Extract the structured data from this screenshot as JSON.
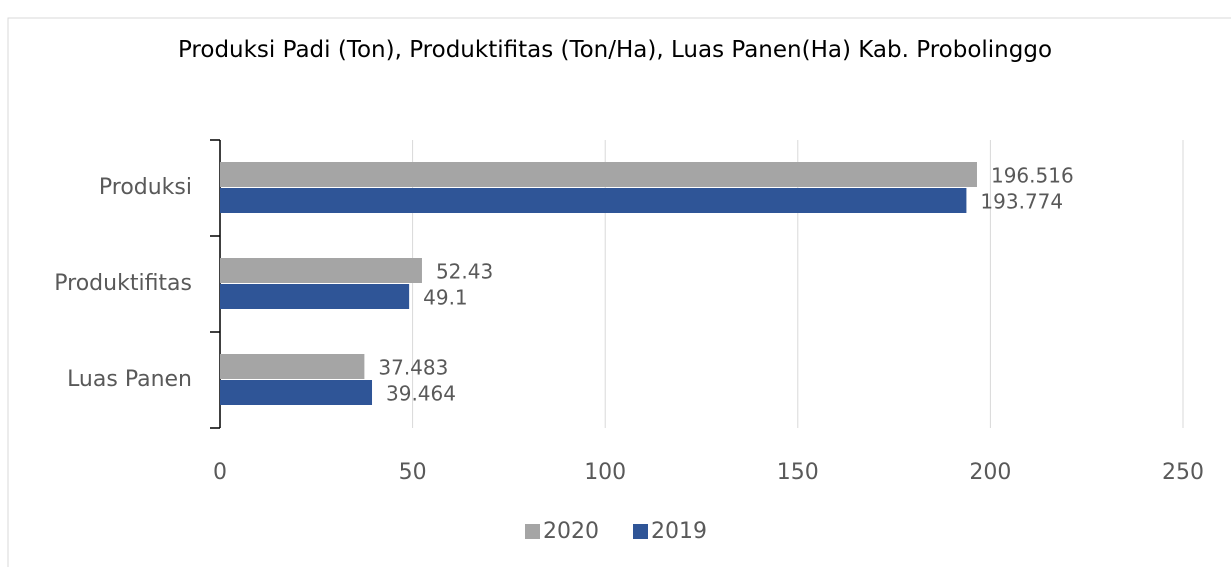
{
  "chart_data": {
    "type": "bar",
    "orientation": "horizontal",
    "title": "Produksi Padi (Ton), Produktifitas (Ton/Ha), Luas Panen(Ha) Kab. Probolinggo",
    "categories": [
      "Produksi",
      "Produktifitas",
      "Luas Panen"
    ],
    "series": [
      {
        "name": "2020",
        "color": "#a5a5a5",
        "values": [
          196.516,
          52.43,
          37.483
        ]
      },
      {
        "name": "2019",
        "color": "#2f5597",
        "values": [
          193.774,
          49.1,
          39.464
        ]
      }
    ],
    "xlim": [
      0,
      250
    ],
    "xticks": [
      0,
      50,
      100,
      150,
      200,
      250
    ],
    "grid": true,
    "legend": "bottom"
  }
}
